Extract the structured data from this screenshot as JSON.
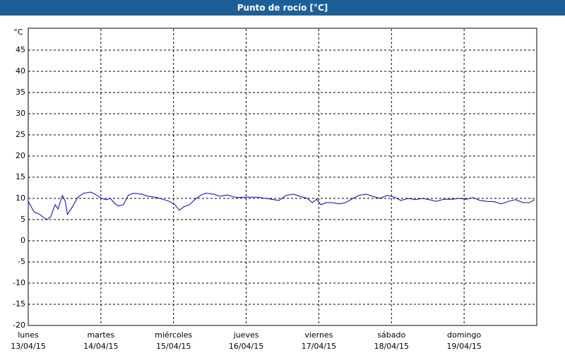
{
  "chart_data": {
    "type": "line",
    "title": "Punto de rocío [°C]",
    "unit": "°C",
    "xlim": [
      0,
      7
    ],
    "ylim": [
      -20,
      50
    ],
    "yticks": [
      -20,
      -15,
      -10,
      -5,
      0,
      5,
      10,
      15,
      20,
      25,
      30,
      35,
      40,
      45
    ],
    "xticks": [
      {
        "value": 0,
        "label": "lunes",
        "date": "13/04/15"
      },
      {
        "value": 1,
        "label": "martes",
        "date": "14/04/15"
      },
      {
        "value": 2,
        "label": "miércoles",
        "date": "15/04/15"
      },
      {
        "value": 3,
        "label": "jueves",
        "date": "16/04/15"
      },
      {
        "value": 4,
        "label": "viernes",
        "date": "17/04/15"
      },
      {
        "value": 5,
        "label": "sábado",
        "date": "18/04/15"
      },
      {
        "value": 6,
        "label": "domingo",
        "date": "19/04/15"
      }
    ],
    "grid": true,
    "series": [
      {
        "color": "#0000c0",
        "x": [
          0,
          0.08,
          0.15,
          0.21,
          0.26,
          0.31,
          0.37,
          0.41,
          0.47,
          0.51,
          0.54,
          0.6,
          0.68,
          0.76,
          0.86,
          0.92,
          1.01,
          1.07,
          1.13,
          1.19,
          1.24,
          1.31,
          1.38,
          1.46,
          1.56,
          1.65,
          1.77,
          1.87,
          1.94,
          2.02,
          2.08,
          2.14,
          2.22,
          2.29,
          2.38,
          2.45,
          2.55,
          2.64,
          2.74,
          2.86,
          2.97,
          3.06,
          3.16,
          3.26,
          3.35,
          3.45,
          3.55,
          3.65,
          3.74,
          3.84,
          3.91,
          3.97,
          4.03,
          4.1,
          4.18,
          4.28,
          4.37,
          4.45,
          4.55,
          4.65,
          4.74,
          4.84,
          4.94,
          5.04,
          5.13,
          5.23,
          5.33,
          5.42,
          5.52,
          5.62,
          5.72,
          5.83,
          5.93,
          6.03,
          6.12,
          6.22,
          6.32,
          6.42,
          6.51,
          6.61,
          6.71,
          6.81,
          6.9,
          6.97
        ],
        "values": [
          9.3,
          6.8,
          6.3,
          5.5,
          5,
          5.7,
          8.5,
          7.5,
          10.7,
          9.3,
          6.2,
          7.8,
          10.2,
          11.2,
          11.5,
          11,
          10,
          9.7,
          10,
          8.8,
          8.2,
          8.5,
          10.8,
          11.2,
          11,
          10.5,
          10.2,
          9.7,
          9.3,
          8.5,
          7.2,
          8,
          8.5,
          9.7,
          10.8,
          11.2,
          11,
          10.5,
          10.8,
          10.2,
          10.3,
          10.3,
          10.3,
          10,
          9.8,
          9.5,
          10.7,
          11,
          10.5,
          10,
          9,
          9.8,
          8.5,
          9,
          9,
          8.7,
          9,
          9.8,
          10.7,
          11,
          10.5,
          10,
          10.7,
          10.3,
          9.5,
          10,
          9.7,
          10,
          9.7,
          9.3,
          9.8,
          9.8,
          10,
          9.8,
          10.2,
          9.5,
          9.3,
          9.2,
          8.7,
          9.3,
          9.7,
          9,
          9,
          9.7
        ]
      }
    ]
  }
}
